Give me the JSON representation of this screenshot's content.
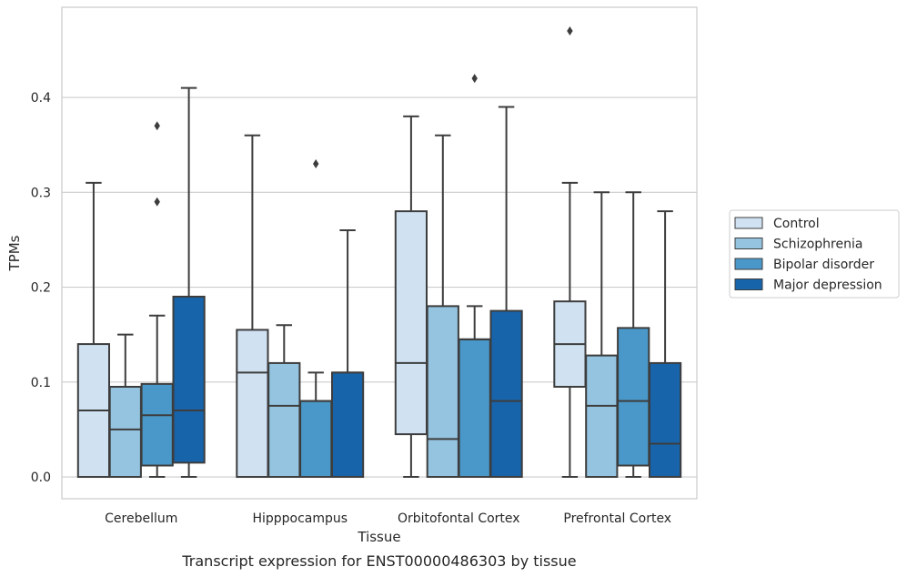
{
  "chart_data": {
    "type": "box",
    "caption": "Transcript expression for ENST00000486303 by tissue",
    "xlabel": "Tissue",
    "ylabel": "TPMs",
    "ylim": [
      -0.023,
      0.495
    ],
    "yticks": [
      "0.0",
      "0.1",
      "0.2",
      "0.3",
      "0.4"
    ],
    "grid": "horizontal",
    "legend_position": "right",
    "categories": [
      "Cerebellum",
      "Hipppocampus",
      "Orbitofontal Cortex",
      "Prefrontal Cortex"
    ],
    "series": [
      {
        "name": "Control",
        "color": "#d0e1f2",
        "boxes": [
          {
            "whislo": 0.0,
            "q1": 0.0,
            "med": 0.07,
            "q3": 0.14,
            "whishi": 0.31,
            "fliers": []
          },
          {
            "whislo": 0.0,
            "q1": 0.0,
            "med": 0.11,
            "q3": 0.155,
            "whishi": 0.36,
            "fliers": []
          },
          {
            "whislo": 0.0,
            "q1": 0.045,
            "med": 0.12,
            "q3": 0.28,
            "whishi": 0.38,
            "fliers": []
          },
          {
            "whislo": 0.0,
            "q1": 0.095,
            "med": 0.14,
            "q3": 0.185,
            "whishi": 0.31,
            "fliers": [
              0.47
            ]
          }
        ]
      },
      {
        "name": "Schizophrenia",
        "color": "#94c4df",
        "boxes": [
          {
            "whislo": 0.0,
            "q1": 0.0,
            "med": 0.05,
            "q3": 0.095,
            "whishi": 0.15,
            "fliers": []
          },
          {
            "whislo": 0.0,
            "q1": 0.0,
            "med": 0.075,
            "q3": 0.12,
            "whishi": 0.16,
            "fliers": []
          },
          {
            "whislo": 0.0,
            "q1": 0.0,
            "med": 0.04,
            "q3": 0.18,
            "whishi": 0.36,
            "fliers": []
          },
          {
            "whislo": 0.0,
            "q1": 0.0,
            "med": 0.075,
            "q3": 0.128,
            "whishi": 0.3,
            "fliers": []
          }
        ]
      },
      {
        "name": "Bipolar disorder",
        "color": "#4a98c9",
        "boxes": [
          {
            "whislo": 0.0,
            "q1": 0.012,
            "med": 0.065,
            "q3": 0.098,
            "whishi": 0.17,
            "fliers": [
              0.29,
              0.37
            ]
          },
          {
            "whislo": 0.0,
            "q1": 0.0,
            "med": 0.08,
            "q3": 0.08,
            "whishi": 0.11,
            "fliers": [
              0.33
            ]
          },
          {
            "whislo": 0.0,
            "q1": 0.0,
            "med": 0.145,
            "q3": 0.145,
            "whishi": 0.18,
            "fliers": [
              0.42
            ]
          },
          {
            "whislo": 0.0,
            "q1": 0.012,
            "med": 0.08,
            "q3": 0.157,
            "whishi": 0.3,
            "fliers": []
          }
        ]
      },
      {
        "name": "Major depression",
        "color": "#1764ab",
        "boxes": [
          {
            "whislo": 0.0,
            "q1": 0.015,
            "med": 0.07,
            "q3": 0.19,
            "whishi": 0.41,
            "fliers": []
          },
          {
            "whislo": 0.0,
            "q1": 0.0,
            "med": 0.11,
            "q3": 0.11,
            "whishi": 0.26,
            "fliers": []
          },
          {
            "whislo": 0.0,
            "q1": 0.0,
            "med": 0.08,
            "q3": 0.175,
            "whishi": 0.39,
            "fliers": []
          },
          {
            "whislo": 0.0,
            "q1": 0.0,
            "med": 0.035,
            "q3": 0.12,
            "whishi": 0.28,
            "fliers": []
          }
        ]
      }
    ]
  }
}
